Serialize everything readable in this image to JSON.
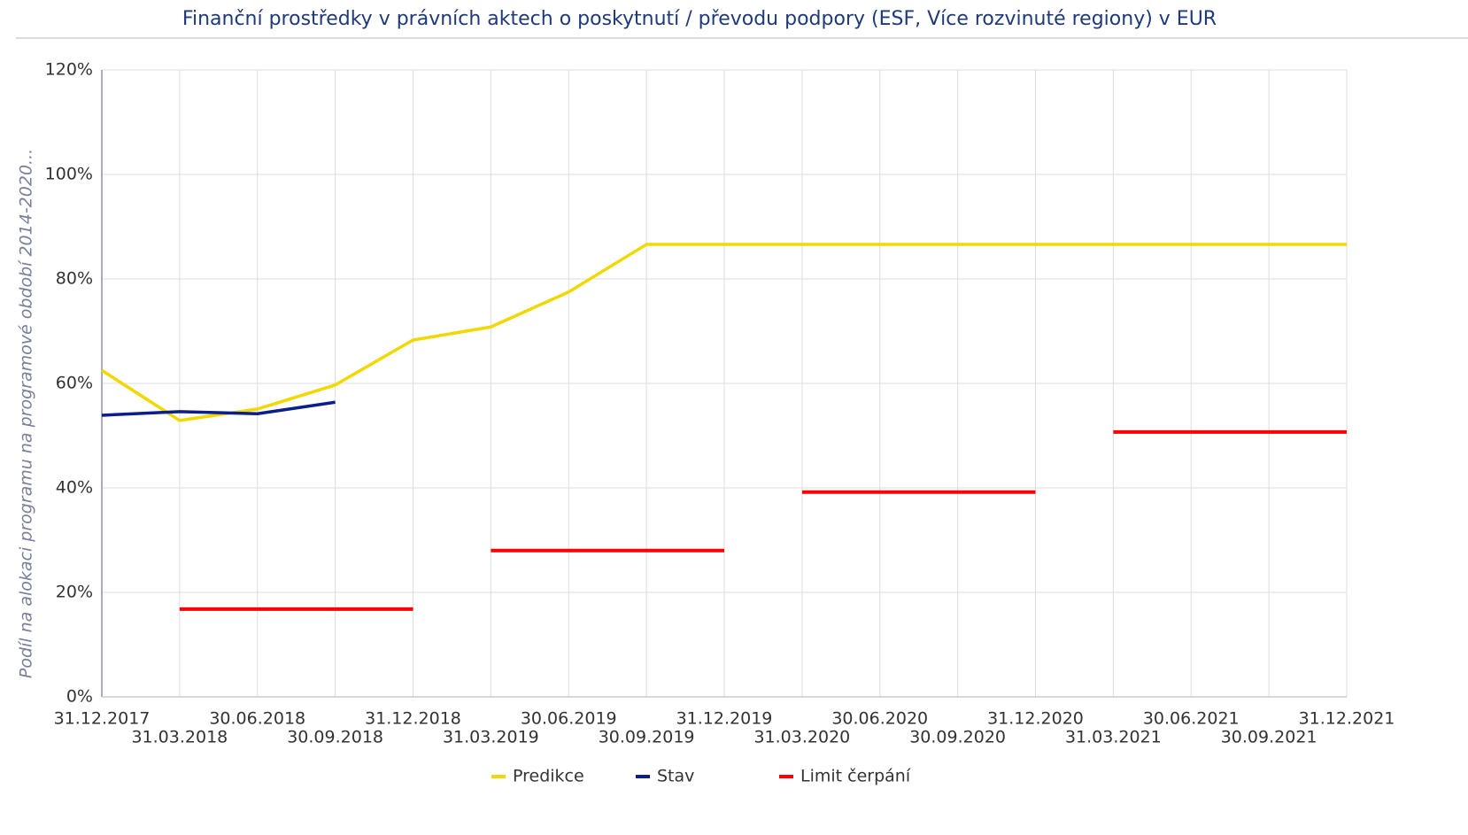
{
  "chart_data": {
    "type": "line",
    "title": "Finanční prostředky v právních aktech o poskytnutí / převodu podpory (ESF, Více rozvinuté regiony) v EUR",
    "y_label": "Podíl na alokaci programu na programové období 2014-2020...",
    "categories": [
      "31.12.2017",
      "31.03.2018",
      "30.06.2018",
      "30.09.2018",
      "31.12.2018",
      "31.03.2019",
      "30.06.2019",
      "30.09.2019",
      "31.12.2019",
      "31.03.2020",
      "30.06.2020",
      "30.09.2020",
      "31.12.2020",
      "31.03.2021",
      "30.06.2021",
      "30.09.2021",
      "31.12.2021"
    ],
    "series": [
      {
        "name": "Predikce",
        "color": "#f0d800",
        "values": [
          62.5,
          52.9,
          55.1,
          59.7,
          68.3,
          70.8,
          77.5,
          86.6,
          86.6,
          86.6,
          86.6,
          86.6,
          86.6,
          86.6,
          86.6,
          86.6,
          86.6
        ]
      },
      {
        "name": "Stav",
        "color": "#0a1e8c",
        "values": [
          53.9,
          54.6,
          54.2,
          56.4,
          null,
          null,
          null,
          null,
          null,
          null,
          null,
          null,
          null,
          null,
          null,
          null,
          null
        ]
      },
      {
        "name": "Limit čerpání",
        "color": "#ff0000",
        "steps": true,
        "values": [
          null,
          16.8,
          16.8,
          16.8,
          16.8,
          28.0,
          28.0,
          28.0,
          28.0,
          39.2,
          39.2,
          39.2,
          39.2,
          50.7,
          50.7,
          50.7,
          50.7
        ]
      }
    ],
    "ylim": [
      0,
      120
    ],
    "yticks": [
      {
        "value": 0,
        "label": "0%"
      },
      {
        "value": 20,
        "label": "20%"
      },
      {
        "value": 40,
        "label": "40%"
      },
      {
        "value": 60,
        "label": "60%"
      },
      {
        "value": 80,
        "label": "80%"
      },
      {
        "value": 100,
        "label": "100%"
      },
      {
        "value": 120,
        "label": "120%"
      }
    ],
    "grid": true,
    "legend": "bottom"
  }
}
